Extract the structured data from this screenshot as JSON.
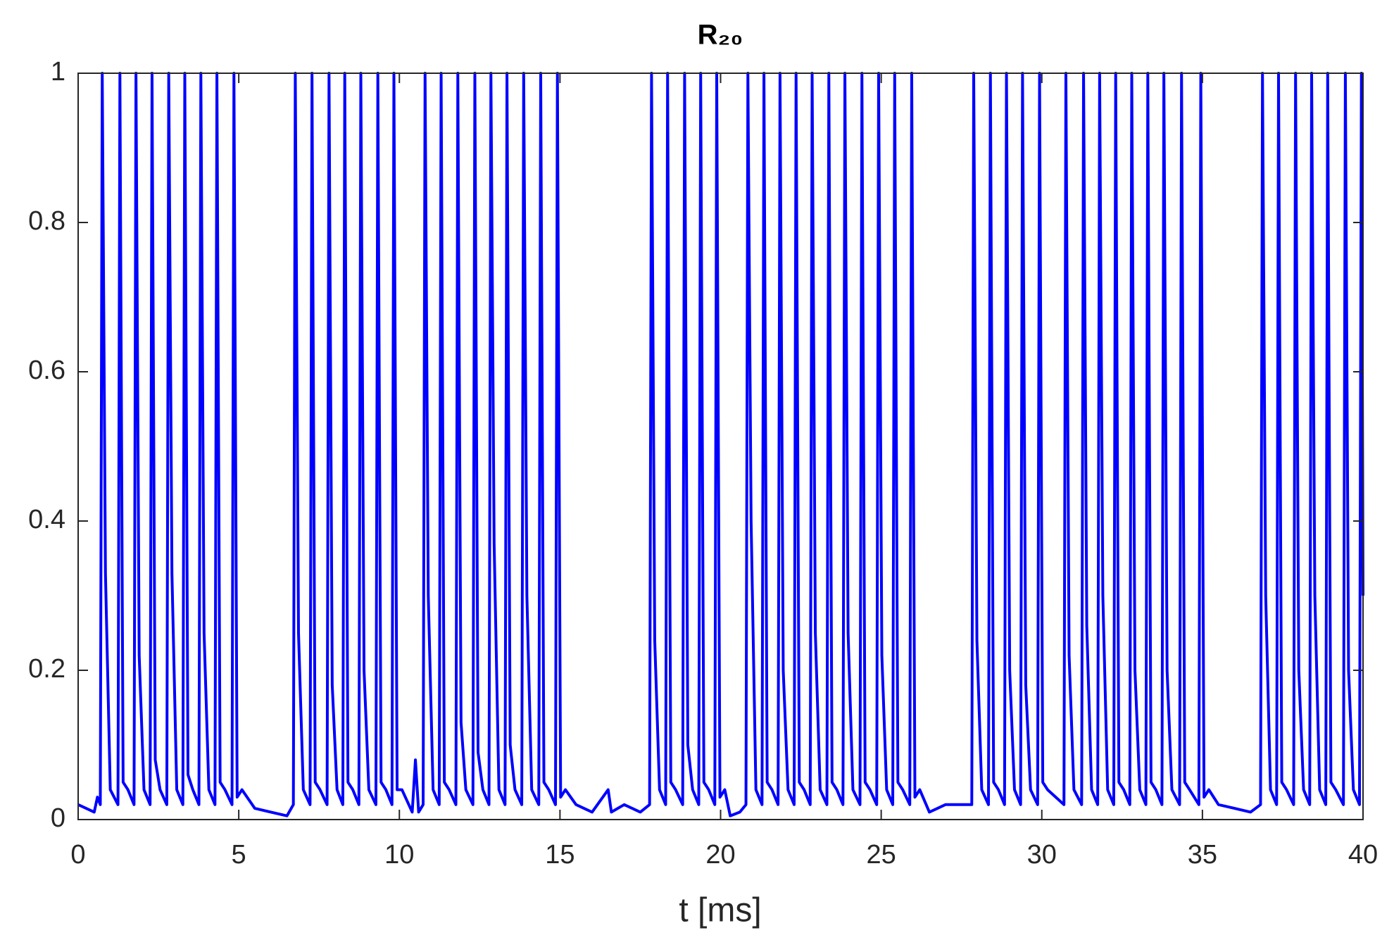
{
  "chart_data": {
    "type": "line",
    "title": "R₂₀",
    "x_label": "t [ms]",
    "color": "#0000ff",
    "xlim": [
      0,
      40
    ],
    "xticks": [
      0,
      5,
      10,
      15,
      20,
      25,
      30,
      35,
      40
    ],
    "ylim": [
      0,
      1
    ],
    "yticks": [
      0,
      0.2,
      0.4,
      0.6,
      0.8,
      1
    ],
    "x": [
      0,
      0.5,
      0.6,
      0.69,
      0.75,
      0.85,
      1.0,
      1.24,
      1.3,
      1.4,
      1.55,
      1.74,
      1.8,
      1.9,
      2.05,
      2.24,
      2.3,
      2.4,
      2.55,
      2.76,
      2.82,
      2.92,
      3.07,
      3.26,
      3.32,
      3.42,
      3.57,
      3.76,
      3.82,
      3.92,
      4.07,
      4.26,
      4.32,
      4.42,
      4.57,
      4.79,
      4.85,
      4.95,
      5.1,
      5.5,
      6.0,
      6.5,
      6.7,
      6.76,
      6.86,
      7.01,
      7.22,
      7.28,
      7.38,
      7.53,
      7.75,
      7.81,
      7.91,
      8.06,
      8.24,
      8.3,
      8.4,
      8.55,
      8.74,
      8.8,
      8.9,
      9.05,
      9.27,
      9.33,
      9.43,
      9.58,
      9.77,
      9.83,
      9.93,
      10.08,
      10.4,
      10.5,
      10.6,
      10.74,
      10.8,
      10.9,
      11.05,
      11.24,
      11.3,
      11.4,
      11.55,
      11.76,
      11.82,
      11.92,
      12.07,
      12.29,
      12.35,
      12.45,
      12.6,
      12.79,
      12.85,
      12.95,
      13.1,
      13.29,
      13.35,
      13.45,
      13.6,
      13.81,
      13.87,
      13.97,
      14.12,
      14.34,
      14.4,
      14.5,
      14.65,
      14.86,
      14.92,
      15.02,
      15.17,
      15.5,
      16,
      16.5,
      16.6,
      17,
      17.5,
      17.79,
      17.85,
      17.95,
      18.1,
      18.29,
      18.35,
      18.45,
      18.6,
      18.82,
      18.88,
      18.98,
      19.13,
      19.32,
      19.38,
      19.48,
      19.63,
      19.82,
      19.88,
      19.98,
      20.13,
      20.3,
      20.6,
      20.79,
      20.85,
      20.95,
      21.1,
      21.29,
      21.35,
      21.45,
      21.6,
      21.79,
      21.85,
      21.95,
      22.1,
      22.29,
      22.35,
      22.45,
      22.6,
      22.79,
      22.85,
      22.95,
      23.1,
      23.31,
      23.37,
      23.47,
      23.62,
      23.81,
      23.87,
      23.97,
      24.12,
      24.34,
      24.4,
      24.5,
      24.65,
      24.86,
      24.92,
      25.02,
      25.17,
      25.36,
      25.42,
      25.52,
      25.67,
      25.89,
      25.95,
      26.05,
      26.2,
      26.5,
      27,
      27.5,
      27.82,
      27.88,
      27.98,
      28.13,
      28.34,
      28.4,
      28.5,
      28.65,
      28.84,
      28.9,
      29,
      29.15,
      29.34,
      29.4,
      29.5,
      29.65,
      29.87,
      29.93,
      30.03,
      30.18,
      30.69,
      30.75,
      30.85,
      31.0,
      31.24,
      31.3,
      31.4,
      31.55,
      31.74,
      31.8,
      31.9,
      32.05,
      32.24,
      32.3,
      32.4,
      32.55,
      32.74,
      32.8,
      32.9,
      33.05,
      33.24,
      33.3,
      33.4,
      33.55,
      33.74,
      33.8,
      33.9,
      34.05,
      34.29,
      34.35,
      34.45,
      34.6,
      34.89,
      34.95,
      35.05,
      35.2,
      35.5,
      36,
      36.5,
      36.81,
      36.87,
      36.97,
      37.12,
      37.31,
      37.37,
      37.47,
      37.62,
      37.84,
      37.9,
      38,
      38.15,
      38.34,
      38.4,
      38.5,
      38.65,
      38.84,
      38.9,
      39,
      39.15,
      39.39,
      39.45,
      39.55,
      39.7,
      39.89,
      39.95,
      40
    ],
    "values": [
      0.02,
      0.01,
      0.03,
      0.02,
      1,
      0.33,
      0.04,
      0.02,
      1,
      0.05,
      0.04,
      0.02,
      1,
      0.22,
      0.04,
      0.02,
      1,
      0.08,
      0.04,
      0.02,
      1,
      0.33,
      0.04,
      0.02,
      1,
      0.06,
      0.04,
      0.02,
      1,
      0.25,
      0.04,
      0.02,
      1,
      0.05,
      0.04,
      0.02,
      1,
      0.03,
      0.04,
      0.015,
      0.01,
      0.005,
      0.02,
      1,
      0.25,
      0.04,
      0.02,
      1,
      0.05,
      0.04,
      0.02,
      1,
      0.18,
      0.04,
      0.02,
      1,
      0.05,
      0.04,
      0.02,
      1,
      0.2,
      0.04,
      0.02,
      1,
      0.05,
      0.04,
      0.02,
      1,
      0.04,
      0.04,
      0.01,
      0.08,
      0.01,
      0.02,
      1,
      0.3,
      0.04,
      0.02,
      1,
      0.05,
      0.04,
      0.02,
      1,
      0.13,
      0.04,
      0.02,
      1,
      0.09,
      0.04,
      0.02,
      1,
      0.37,
      0.04,
      0.02,
      1,
      0.1,
      0.04,
      0.02,
      1,
      0.3,
      0.04,
      0.02,
      1,
      0.05,
      0.04,
      0.02,
      1,
      0.03,
      0.04,
      0.02,
      0.01,
      0.04,
      0.01,
      0.02,
      0.01,
      0.02,
      1,
      0.24,
      0.04,
      0.02,
      1,
      0.05,
      0.04,
      0.02,
      1,
      0.1,
      0.04,
      0.02,
      1,
      0.05,
      0.04,
      0.02,
      1,
      0.03,
      0.04,
      0.005,
      0.01,
      0.02,
      1,
      0.4,
      0.04,
      0.02,
      1,
      0.05,
      0.04,
      0.02,
      1,
      0.2,
      0.04,
      0.02,
      1,
      0.05,
      0.04,
      0.02,
      1,
      0.25,
      0.04,
      0.02,
      1,
      0.05,
      0.04,
      0.02,
      1,
      0.25,
      0.04,
      0.02,
      1,
      0.05,
      0.04,
      0.02,
      1,
      0.22,
      0.04,
      0.02,
      1,
      0.05,
      0.04,
      0.02,
      1,
      0.03,
      0.04,
      0.01,
      0.02,
      0.02,
      0.02,
      1,
      0.24,
      0.04,
      0.02,
      1,
      0.05,
      0.04,
      0.02,
      1,
      0.2,
      0.04,
      0.02,
      1,
      0.18,
      0.04,
      0.02,
      1,
      0.05,
      0.04,
      0.02,
      1,
      0.22,
      0.04,
      0.02,
      1,
      0.26,
      0.04,
      0.02,
      1,
      0.3,
      0.04,
      0.02,
      1,
      0.05,
      0.04,
      0.02,
      1,
      0.2,
      0.04,
      0.02,
      1,
      0.05,
      0.04,
      0.02,
      1,
      0.2,
      0.04,
      0.02,
      1,
      0.05,
      0.04,
      0.02,
      1,
      0.03,
      0.04,
      0.02,
      0.015,
      0.01,
      0.02,
      1,
      0.3,
      0.04,
      0.02,
      1,
      0.05,
      0.04,
      0.02,
      1,
      0.2,
      0.04,
      0.02,
      1,
      0.3,
      0.04,
      0.02,
      1,
      0.05,
      0.04,
      0.02,
      1,
      0.2,
      0.04,
      0.02,
      1,
      0.3
    ]
  }
}
